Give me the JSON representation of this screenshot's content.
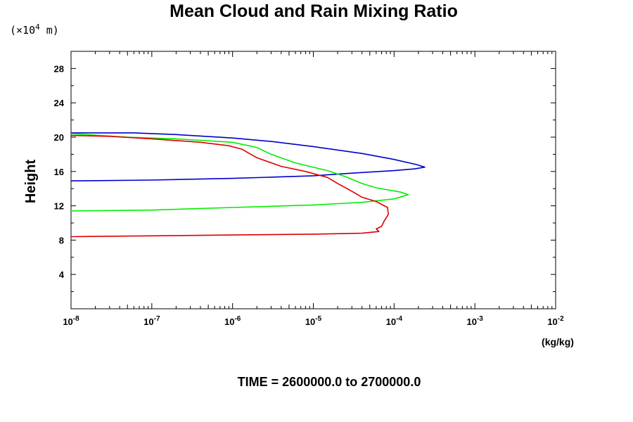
{
  "chart_data": {
    "type": "line",
    "title": "Mean Cloud and Rain Mixing Ratio",
    "scale_prefix": "(×10",
    "scale_exp": "4",
    "scale_unit": " m)",
    "ylabel": "Height",
    "xlabel": "(kg/kg)",
    "footer": "TIME = 2600000.0 to 2700000.0",
    "xscale": "log",
    "xlim": [
      1e-08,
      0.01
    ],
    "ylim": [
      0,
      30
    ],
    "x_ticks": [
      {
        "base": "10",
        "exp": "-8",
        "value": 1e-08
      },
      {
        "base": "10",
        "exp": "-7",
        "value": 1e-07
      },
      {
        "base": "10",
        "exp": "-6",
        "value": 1e-06
      },
      {
        "base": "10",
        "exp": "-5",
        "value": 1e-05
      },
      {
        "base": "10",
        "exp": "-4",
        "value": 0.0001
      },
      {
        "base": "10",
        "exp": "-3",
        "value": 0.001
      },
      {
        "base": "10",
        "exp": "-2",
        "value": 0.01
      }
    ],
    "y_ticks": [
      {
        "label": "4",
        "value": 4
      },
      {
        "label": "8",
        "value": 8
      },
      {
        "label": "12",
        "value": 12
      },
      {
        "label": "16",
        "value": 16
      },
      {
        "label": "20",
        "value": 20
      },
      {
        "label": "24",
        "value": 24
      },
      {
        "label": "28",
        "value": 28
      }
    ],
    "grid": false,
    "series": [
      {
        "color": "#0000cc",
        "points": [
          [
            1e-08,
            14.9
          ],
          [
            1e-07,
            15.0
          ],
          [
            1e-06,
            15.2
          ],
          [
            5e-06,
            15.4
          ],
          [
            1e-05,
            15.5
          ],
          [
            3e-05,
            15.8
          ],
          [
            0.0001,
            16.1
          ],
          [
            0.00018,
            16.3
          ],
          [
            0.00024,
            16.5
          ],
          [
            0.00019,
            16.8
          ],
          [
            0.0001,
            17.4
          ],
          [
            4e-05,
            18.1
          ],
          [
            1e-05,
            18.9
          ],
          [
            3e-06,
            19.5
          ],
          [
            1e-06,
            19.9
          ],
          [
            2e-07,
            20.3
          ],
          [
            6e-08,
            20.5
          ],
          [
            1e-08,
            20.5
          ]
        ]
      },
      {
        "color": "#00ee00",
        "points": [
          [
            1e-08,
            11.4
          ],
          [
            1e-07,
            11.5
          ],
          [
            1e-06,
            11.8
          ],
          [
            1e-05,
            12.1
          ],
          [
            4e-05,
            12.4
          ],
          [
            0.0001,
            12.8
          ],
          [
            0.00015,
            13.3
          ],
          [
            0.00012,
            13.6
          ],
          [
            6e-05,
            14.1
          ],
          [
            4e-05,
            14.6
          ],
          [
            2.5e-05,
            15.4
          ],
          [
            1.5e-05,
            16.1
          ],
          [
            6e-06,
            17.0
          ],
          [
            3e-06,
            18.0
          ],
          [
            2e-06,
            18.8
          ],
          [
            1e-06,
            19.4
          ],
          [
            2e-07,
            19.8
          ],
          [
            5e-08,
            20.0
          ],
          [
            1e-08,
            20.4
          ]
        ]
      },
      {
        "color": "#dd0000",
        "points": [
          [
            1e-08,
            8.4
          ],
          [
            1e-07,
            8.5
          ],
          [
            1e-06,
            8.6
          ],
          [
            1e-05,
            8.7
          ],
          [
            4e-05,
            8.8
          ],
          [
            6.5e-05,
            9.0
          ],
          [
            6e-05,
            9.3
          ],
          [
            7e-05,
            9.6
          ],
          [
            7.5e-05,
            10.2
          ],
          [
            8.5e-05,
            11.0
          ],
          [
            8.3e-05,
            11.8
          ],
          [
            6e-05,
            12.5
          ],
          [
            4e-05,
            13.0
          ],
          [
            3e-05,
            13.7
          ],
          [
            2e-05,
            14.6
          ],
          [
            1.5e-05,
            15.3
          ],
          [
            8e-06,
            16.0
          ],
          [
            4e-06,
            16.6
          ],
          [
            2e-06,
            17.6
          ],
          [
            1.3e-06,
            18.6
          ],
          [
            9e-07,
            19.0
          ],
          [
            4e-07,
            19.4
          ],
          [
            1e-07,
            19.8
          ],
          [
            3e-08,
            20.1
          ],
          [
            1e-08,
            20.2
          ]
        ]
      }
    ]
  }
}
